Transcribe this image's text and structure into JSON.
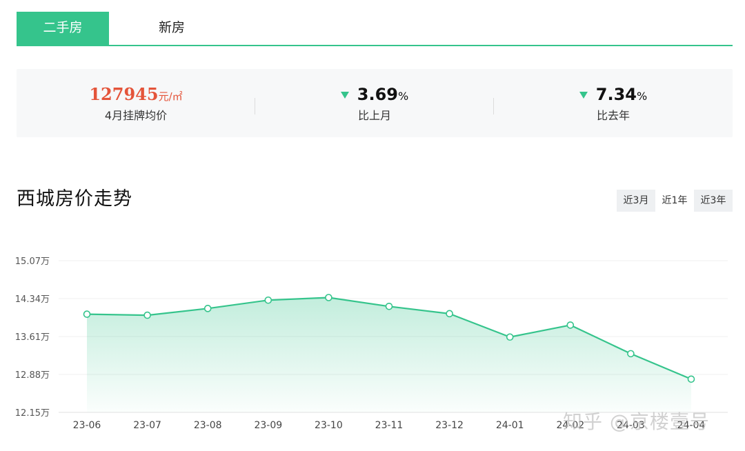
{
  "tabs": [
    {
      "label": "二手房",
      "active": true
    },
    {
      "label": "新房",
      "active": false
    }
  ],
  "stats": {
    "avg_price": {
      "value": "127945",
      "unit": "元/㎡",
      "label": "4月挂牌均价"
    },
    "mom": {
      "value": "3.69",
      "unit": "%",
      "label": "比上月",
      "direction": "down"
    },
    "yoy": {
      "value": "7.34",
      "unit": "%",
      "label": "比去年",
      "direction": "down"
    }
  },
  "chart_section": {
    "title": "西城房价走势",
    "ranges": [
      {
        "label": "近3月",
        "active": false
      },
      {
        "label": "近1年",
        "active": true
      },
      {
        "label": "近3年",
        "active": false
      }
    ]
  },
  "chart_data": {
    "type": "area",
    "x": [
      "23-06",
      "23-07",
      "23-08",
      "23-09",
      "23-10",
      "23-11",
      "23-12",
      "24-01",
      "24-02",
      "24-03",
      "24-04"
    ],
    "y_tick_labels": [
      "15.07万",
      "14.34万",
      "13.61万",
      "12.88万",
      "12.15万"
    ],
    "y_ticks": [
      15.07,
      14.34,
      13.61,
      12.88,
      12.15
    ],
    "ylim": [
      12.15,
      15.07
    ],
    "series": [
      {
        "values": [
          14.04,
          14.02,
          14.15,
          14.31,
          14.36,
          14.19,
          14.05,
          13.6,
          13.83,
          13.28,
          12.79
        ]
      }
    ],
    "grid": true,
    "colors": {
      "line": "#35c48c",
      "fill": "#35c48c"
    }
  },
  "watermark": "知乎 @京楼壹号",
  "colors": {
    "accent": "#35c48c",
    "price": "#e4543a"
  }
}
